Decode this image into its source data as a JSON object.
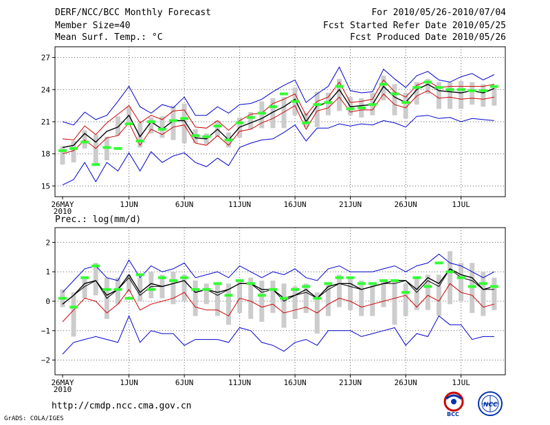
{
  "header": {
    "title": "DERF/NCC/BCC Monthly Forecast",
    "member_size": "Member Size=40",
    "variable1": "Mean Surf. Temp.: °C",
    "period": "For 2010/05/26-2010/07/04",
    "refer_date": "Fcst Started Refer Date 2010/05/25",
    "produced_date": "Fcst Produced Date 2010/05/26"
  },
  "footer": {
    "url": "http://cmdp.ncc.cma.gov.cn",
    "credit": "GrADS: COLA/IGES",
    "logo_bcc": "BCC",
    "logo_ncc": "NCC"
  },
  "colors": {
    "outer_band": "#0000cc",
    "inner_band": "#cc0000",
    "mean": "#000000",
    "marker": "#33ff33",
    "box": "#cccccc",
    "grid": "#555555"
  },
  "chart_data": [
    {
      "type": "line",
      "title": "Mean Surf. Temp.: °C",
      "xlabel": "",
      "ylabel": "°C",
      "ylim": [
        14,
        28
      ],
      "y_ticks": [
        15,
        18,
        21,
        24,
        27
      ],
      "y_tick_labels": [
        "15",
        "18",
        "21",
        "24",
        "27"
      ],
      "x_ticks": [
        {
          "day": 0,
          "label": "26MAY",
          "sub": "2010"
        },
        {
          "day": 6,
          "label": "1JUN",
          "sub": ""
        },
        {
          "day": 11,
          "label": "6JUN",
          "sub": ""
        },
        {
          "day": 16,
          "label": "11JUN",
          "sub": ""
        },
        {
          "day": 21,
          "label": "16JUN",
          "sub": ""
        },
        {
          "day": 26,
          "label": "21JUN",
          "sub": ""
        },
        {
          "day": 31,
          "label": "26JUN",
          "sub": ""
        },
        {
          "day": 36,
          "label": "1JUL",
          "sub": ""
        }
      ],
      "grid": true,
      "series": [
        {
          "name": "max",
          "color": "#0000cc",
          "values": [
            21.0,
            20.7,
            21.9,
            21.2,
            21.6,
            22.9,
            24.3,
            22.4,
            21.8,
            22.6,
            22.3,
            23.3,
            21.6,
            21.6,
            22.4,
            21.8,
            22.6,
            22.7,
            23.1,
            23.8,
            24.4,
            24.9,
            22.8,
            23.6,
            24.3,
            26.1,
            23.9,
            23.7,
            23.8,
            25.9,
            25.0,
            24.2,
            25.3,
            25.7,
            24.9,
            24.7,
            25.2,
            25.5,
            24.9,
            25.4
          ]
        },
        {
          "name": "upper",
          "color": "#cc0000",
          "values": [
            19.4,
            19.3,
            20.6,
            19.8,
            20.9,
            21.7,
            22.5,
            20.9,
            21.6,
            21.2,
            22.0,
            22.1,
            20.5,
            20.4,
            21.1,
            20.2,
            21.1,
            21.7,
            21.8,
            22.7,
            23.1,
            23.6,
            21.6,
            22.9,
            23.3,
            24.7,
            22.8,
            22.9,
            23.1,
            24.9,
            23.8,
            23.3,
            24.4,
            24.8,
            24.2,
            24.3,
            24.3,
            24.3,
            24.3,
            24.5
          ]
        },
        {
          "name": "mean",
          "color": "#000000",
          "values": [
            18.6,
            18.8,
            19.9,
            19.1,
            20.1,
            20.5,
            21.6,
            19.6,
            21.0,
            20.3,
            21.1,
            21.1,
            19.5,
            19.4,
            20.3,
            19.3,
            20.5,
            20.9,
            21.3,
            21.9,
            22.4,
            23.1,
            21.0,
            22.5,
            22.8,
            24.0,
            22.4,
            22.5,
            22.6,
            24.3,
            23.3,
            22.8,
            24.0,
            24.5,
            23.9,
            23.8,
            23.7,
            23.9,
            23.7,
            24.1
          ]
        },
        {
          "name": "lower",
          "color": "#cc0000",
          "values": [
            18.0,
            18.3,
            19.3,
            18.5,
            19.5,
            19.7,
            20.9,
            18.8,
            20.3,
            19.8,
            20.5,
            20.7,
            19.0,
            18.8,
            19.7,
            18.8,
            20.1,
            20.3,
            20.9,
            21.3,
            21.9,
            22.5,
            20.3,
            22.0,
            22.3,
            23.3,
            21.9,
            22.1,
            22.1,
            23.6,
            22.6,
            22.3,
            23.4,
            23.9,
            23.2,
            23.3,
            23.1,
            23.2,
            23.1,
            23.3
          ]
        },
        {
          "name": "min",
          "color": "#0000cc",
          "values": [
            15.1,
            15.6,
            17.2,
            15.4,
            17.2,
            16.4,
            18.1,
            16.4,
            18.2,
            17.2,
            17.8,
            18.1,
            17.2,
            16.8,
            17.6,
            16.9,
            18.6,
            19.0,
            19.3,
            19.4,
            20.0,
            20.7,
            19.2,
            20.4,
            20.4,
            20.8,
            20.6,
            20.8,
            20.7,
            21.1,
            20.9,
            20.5,
            21.5,
            21.6,
            21.3,
            21.4,
            21.0,
            21.3,
            21.2,
            21.1
          ]
        }
      ],
      "boxes": [
        [
          17.0,
          18.7
        ],
        [
          17.2,
          19.2
        ],
        [
          18.5,
          20.2
        ],
        [
          17.0,
          19.8
        ],
        [
          17.4,
          19.6
        ],
        [
          19.7,
          21.5
        ],
        [
          20.7,
          22.4
        ],
        [
          18.6,
          20.9
        ],
        [
          19.9,
          21.4
        ],
        [
          19.5,
          21.5
        ],
        [
          19.3,
          22.5
        ],
        [
          19.0,
          22.7
        ],
        [
          19.0,
          20.3
        ],
        [
          18.9,
          19.9
        ],
        [
          19.6,
          21.1
        ],
        [
          18.6,
          20.0
        ],
        [
          19.5,
          21.4
        ],
        [
          20.3,
          21.9
        ],
        [
          20.4,
          22.9
        ],
        [
          20.4,
          23.2
        ],
        [
          20.4,
          23.3
        ],
        [
          21.6,
          24.2
        ],
        [
          20.5,
          21.8
        ],
        [
          20.5,
          23.8
        ],
        [
          21.6,
          23.7
        ],
        [
          22.0,
          25.0
        ],
        [
          21.6,
          23.3
        ],
        [
          21.4,
          23.2
        ],
        [
          21.6,
          23.7
        ],
        [
          23.0,
          25.3
        ],
        [
          21.6,
          24.5
        ],
        [
          21.3,
          23.7
        ],
        [
          22.6,
          24.7
        ],
        [
          23.6,
          25.0
        ],
        [
          22.2,
          24.7
        ],
        [
          22.2,
          24.7
        ],
        [
          22.2,
          24.8
        ],
        [
          22.6,
          24.7
        ],
        [
          22.4,
          24.5
        ],
        [
          22.5,
          24.2
        ]
      ],
      "markers": [
        18.3,
        18.5,
        19.1,
        17.0,
        18.6,
        18.5,
        20.8,
        19.2,
        21.0,
        20.3,
        21.1,
        21.3,
        19.7,
        19.6,
        20.6,
        19.3,
        20.9,
        21.4,
        21.8,
        22.4,
        23.6,
        22.9,
        20.9,
        22.6,
        22.8,
        24.3,
        22.2,
        22.3,
        22.6,
        24.5,
        23.6,
        22.8,
        24.2,
        24.7,
        24.2,
        24.0,
        24.0,
        23.9,
        23.9,
        24.3
      ]
    },
    {
      "type": "line",
      "title": "Prec.: log(mm/d)",
      "xlabel": "",
      "ylabel": "log(mm/d)",
      "ylim": [
        -2.5,
        2.5
      ],
      "y_ticks": [
        -2,
        -1,
        0,
        1,
        2
      ],
      "y_tick_labels": [
        "−2",
        "−1",
        "0",
        "1",
        "2"
      ],
      "x_ticks": [
        {
          "day": 0,
          "label": "26MAY",
          "sub": "2010"
        },
        {
          "day": 6,
          "label": "1JUN",
          "sub": ""
        },
        {
          "day": 11,
          "label": "6JUN",
          "sub": ""
        },
        {
          "day": 16,
          "label": "11JUN",
          "sub": ""
        },
        {
          "day": 21,
          "label": "16JUN",
          "sub": ""
        },
        {
          "day": 26,
          "label": "21JUN",
          "sub": ""
        },
        {
          "day": 31,
          "label": "26JUN",
          "sub": ""
        },
        {
          "day": 36,
          "label": "1JUL",
          "sub": ""
        }
      ],
      "grid": true,
      "series": [
        {
          "name": "max",
          "color": "#0000cc",
          "values": [
            0.3,
            0.7,
            1.1,
            1.2,
            0.8,
            0.7,
            1.4,
            0.8,
            1.2,
            1.0,
            1.1,
            1.3,
            0.8,
            0.9,
            1.0,
            0.8,
            1.2,
            1.0,
            0.8,
            1.0,
            0.9,
            1.1,
            0.8,
            0.7,
            1.1,
            1.2,
            1.0,
            1.0,
            1.0,
            1.1,
            1.2,
            1.0,
            1.2,
            1.3,
            1.6,
            1.3,
            1.2,
            1.0,
            0.8,
            1.0
          ]
        },
        {
          "name": "upper",
          "color": "#000000",
          "values": [
            -0.1,
            0.2,
            0.5,
            0.7,
            0.1,
            0.4,
            0.8,
            0.2,
            0.5,
            0.5,
            0.6,
            0.7,
            0.3,
            0.4,
            0.2,
            0.4,
            0.6,
            0.6,
            0.3,
            0.4,
            0.0,
            0.2,
            0.3,
            0.1,
            0.4,
            0.6,
            0.5,
            0.4,
            0.5,
            0.6,
            0.6,
            0.7,
            0.3,
            0.7,
            0.5,
            1.1,
            0.8,
            0.7,
            0.4,
            0.4
          ]
        },
        {
          "name": "mean",
          "color": "#000000",
          "values": [
            -0.1,
            0.2,
            0.6,
            0.7,
            0.2,
            0.4,
            0.9,
            0.3,
            0.6,
            0.5,
            0.6,
            0.7,
            0.3,
            0.4,
            0.3,
            0.4,
            0.6,
            0.6,
            0.4,
            0.4,
            0.1,
            0.2,
            0.4,
            0.1,
            0.5,
            0.6,
            0.6,
            0.4,
            0.5,
            0.6,
            0.7,
            0.7,
            0.4,
            0.8,
            0.6,
            1.1,
            0.9,
            0.8,
            0.4,
            0.5
          ]
        },
        {
          "name": "lower",
          "color": "#cc0000",
          "values": [
            -0.7,
            -0.3,
            0.1,
            0.0,
            -0.4,
            -0.1,
            0.4,
            -0.3,
            -0.1,
            0.0,
            0.1,
            0.3,
            -0.2,
            -0.3,
            -0.3,
            -0.5,
            0.1,
            0.0,
            -0.2,
            -0.1,
            -0.4,
            -0.3,
            -0.2,
            -0.4,
            -0.1,
            0.1,
            0.0,
            -0.2,
            -0.1,
            0.0,
            0.1,
            0.2,
            -0.2,
            0.2,
            0.0,
            0.6,
            0.3,
            0.2,
            -0.2,
            -0.1
          ]
        },
        {
          "name": "min",
          "color": "#0000cc",
          "values": [
            -1.8,
            -1.4,
            -1.3,
            -1.2,
            -1.3,
            -1.4,
            -0.5,
            -1.4,
            -1.0,
            -1.1,
            -1.1,
            -1.5,
            -1.3,
            -1.3,
            -1.3,
            -1.4,
            -0.9,
            -1.0,
            -1.4,
            -1.5,
            -1.7,
            -1.4,
            -1.3,
            -1.5,
            -1.0,
            -1.0,
            -1.0,
            -1.2,
            -1.1,
            -1.0,
            -0.9,
            -1.5,
            -1.1,
            -1.2,
            -0.5,
            -0.8,
            -0.8,
            -1.3,
            -1.2,
            -1.2
          ]
        }
      ],
      "boxes": [
        [
          -0.2,
          0.4
        ],
        [
          -1.2,
          0.3
        ],
        [
          0.1,
          0.8
        ],
        [
          0.2,
          1.3
        ],
        [
          -0.6,
          0.8
        ],
        [
          -0.1,
          0.8
        ],
        [
          0.3,
          0.9
        ],
        [
          0.0,
          0.8
        ],
        [
          0.1,
          1.0
        ],
        [
          0.1,
          0.9
        ],
        [
          -0.1,
          1.0
        ],
        [
          0.0,
          0.9
        ],
        [
          -0.5,
          0.7
        ],
        [
          -0.1,
          0.6
        ],
        [
          -0.5,
          0.6
        ],
        [
          -0.8,
          0.6
        ],
        [
          -0.4,
          0.7
        ],
        [
          -0.6,
          0.8
        ],
        [
          -0.7,
          0.7
        ],
        [
          -0.4,
          0.7
        ],
        [
          -0.9,
          0.6
        ],
        [
          -0.6,
          0.5
        ],
        [
          -0.4,
          0.6
        ],
        [
          -1.1,
          0.3
        ],
        [
          -0.5,
          0.6
        ],
        [
          -0.2,
          0.9
        ],
        [
          -0.3,
          0.8
        ],
        [
          -0.5,
          0.7
        ],
        [
          -0.5,
          0.6
        ],
        [
          -0.2,
          0.7
        ],
        [
          -0.8,
          0.7
        ],
        [
          -0.5,
          0.6
        ],
        [
          -0.3,
          0.8
        ],
        [
          -0.3,
          0.9
        ],
        [
          -0.5,
          0.9
        ],
        [
          -0.1,
          1.7
        ],
        [
          0.0,
          1.3
        ],
        [
          -0.4,
          1.3
        ],
        [
          -0.5,
          1.0
        ],
        [
          -0.3,
          0.8
        ]
      ],
      "markers": [
        0.1,
        -0.2,
        0.8,
        1.2,
        0.4,
        0.4,
        0.1,
        0.9,
        0.4,
        0.8,
        0.7,
        0.8,
        0.4,
        0.4,
        0.6,
        0.2,
        0.7,
        0.6,
        0.2,
        0.4,
        0.1,
        0.4,
        0.5,
        0.1,
        0.6,
        0.8,
        0.8,
        0.6,
        0.6,
        0.7,
        0.7,
        0.3,
        0.8,
        0.5,
        1.3,
        1.0,
        0.8,
        0.5,
        0.6,
        0.5
      ]
    }
  ]
}
